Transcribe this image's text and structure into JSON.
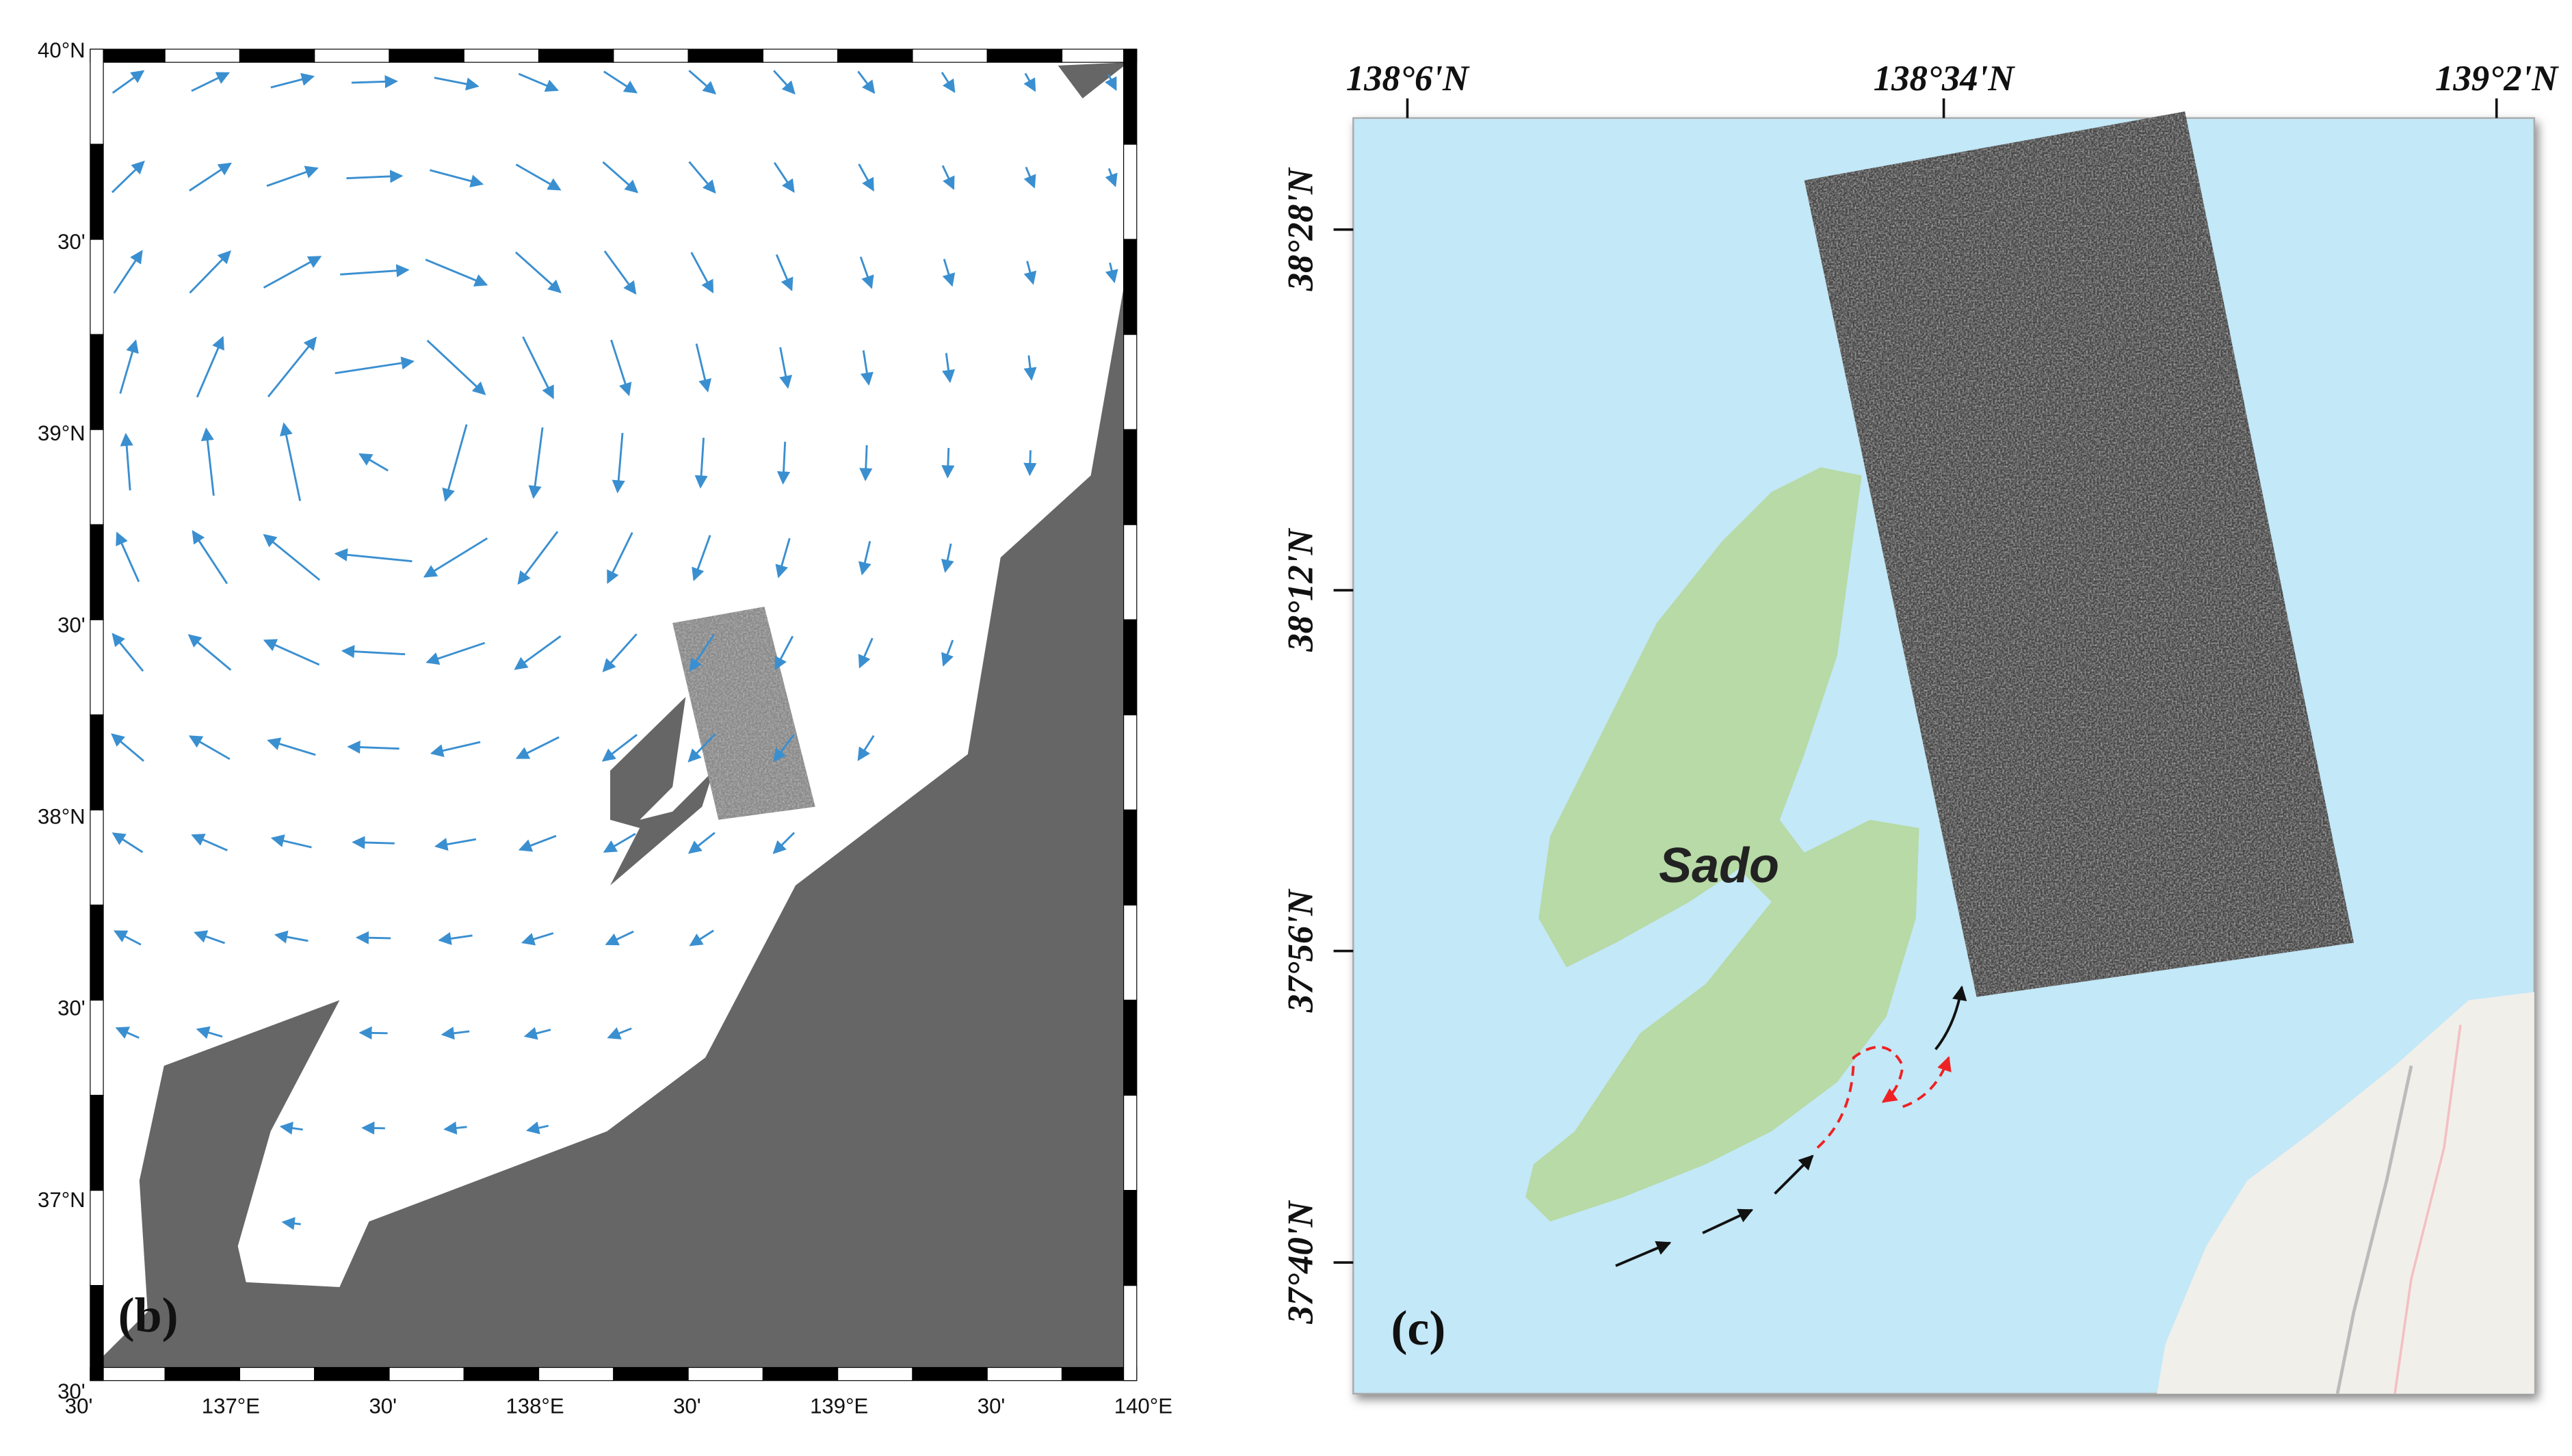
{
  "panel_b": {
    "label": "(b)",
    "lat_labels": [
      "40°N",
      "30'",
      "39°N",
      "30'",
      "38°N",
      "30'",
      "37°N",
      "30'"
    ],
    "lon_labels": [
      "30'",
      "137°E",
      "30'",
      "138°E",
      "30'",
      "139°E",
      "30'",
      "140°E"
    ]
  },
  "panel_c": {
    "label": "(c)",
    "island": "Sado",
    "lon_labels": [
      "138°6'N",
      "138°34'N",
      "139°2'N"
    ],
    "lat_labels": [
      "38°28'N",
      "38°12'N",
      "37°56'N",
      "37°40'N"
    ]
  }
}
